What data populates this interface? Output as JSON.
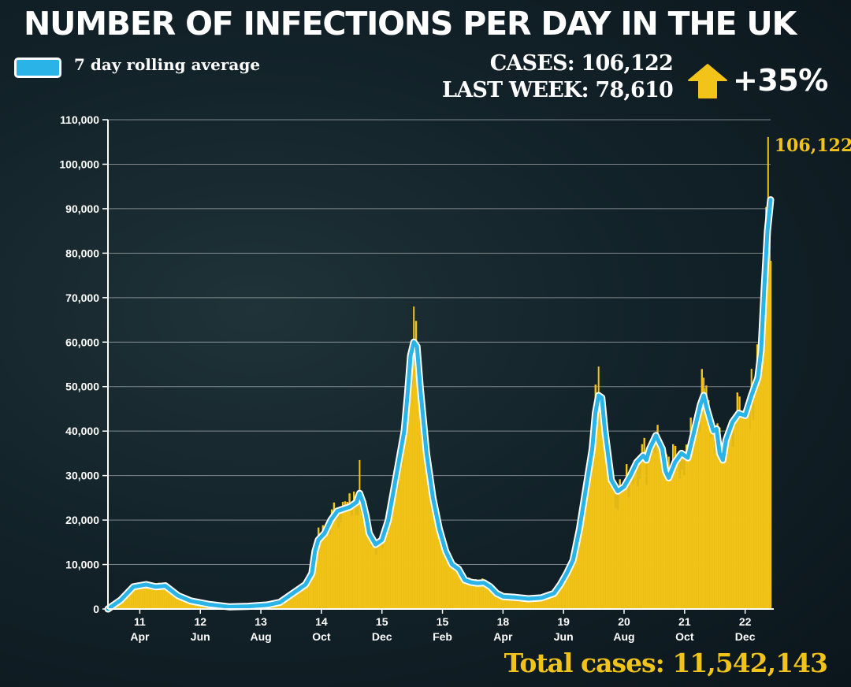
{
  "title": "NUMBER OF INFECTIONS PER DAY IN THE UK",
  "legend": {
    "label": "7 day rolling average"
  },
  "stats": {
    "cases": "CASES: 106,122",
    "last_week": "LAST WEEK: 78,610",
    "change": "+35%",
    "change_direction": "up"
  },
  "peak_label": "106,122",
  "total_cases": {
    "label": "Total cases:",
    "value": "11,542,143"
  },
  "colors": {
    "bars": "#f2c318",
    "line": "#2ab3e6",
    "line_halo": "#ffffff",
    "text": "#ffffff",
    "accent": "#f2c318"
  },
  "chart_data": {
    "type": "bar",
    "title": "NUMBER OF INFECTIONS PER DAY IN THE UK",
    "ylim": [
      0,
      110000
    ],
    "y_ticks": [
      "0",
      "10,000",
      "20,000",
      "30,000",
      "40,000",
      "50,000",
      "60,000",
      "70,000",
      "80,000",
      "90,000",
      "100,000",
      "110,000"
    ],
    "x_ticks": [
      {
        "day": "11",
        "month": "Apr",
        "t": 0.05
      },
      {
        "day": "12",
        "month": "Jun",
        "t": 0.145
      },
      {
        "day": "13",
        "month": "Aug",
        "t": 0.24
      },
      {
        "day": "14",
        "month": "Oct",
        "t": 0.335
      },
      {
        "day": "15",
        "month": "Dec",
        "t": 0.43
      },
      {
        "day": "15",
        "month": "Feb",
        "t": 0.525
      },
      {
        "day": "18",
        "month": "Apr",
        "t": 0.62
      },
      {
        "day": "19",
        "month": "Jun",
        "t": 0.715
      },
      {
        "day": "20",
        "month": "Aug",
        "t": 0.81
      },
      {
        "day": "21",
        "month": "Oct",
        "t": 0.905
      },
      {
        "day": "22",
        "month": "Dec",
        "t": 1.0
      }
    ],
    "series": [
      {
        "name": "7 day rolling average",
        "points": [
          [
            0.0,
            0
          ],
          [
            0.02,
            2000
          ],
          [
            0.04,
            5000
          ],
          [
            0.06,
            5500
          ],
          [
            0.075,
            5000
          ],
          [
            0.09,
            5200
          ],
          [
            0.11,
            3000
          ],
          [
            0.13,
            1800
          ],
          [
            0.16,
            1000
          ],
          [
            0.19,
            500
          ],
          [
            0.22,
            600
          ],
          [
            0.25,
            900
          ],
          [
            0.27,
            1500
          ],
          [
            0.29,
            3500
          ],
          [
            0.31,
            5500
          ],
          [
            0.32,
            8000
          ],
          [
            0.325,
            13000
          ],
          [
            0.33,
            15500
          ],
          [
            0.34,
            17000
          ],
          [
            0.35,
            20000
          ],
          [
            0.36,
            22000
          ],
          [
            0.37,
            22500
          ],
          [
            0.38,
            23000
          ],
          [
            0.39,
            24000
          ],
          [
            0.395,
            26000
          ],
          [
            0.4,
            24000
          ],
          [
            0.405,
            21000
          ],
          [
            0.41,
            17000
          ],
          [
            0.42,
            14500
          ],
          [
            0.43,
            15500
          ],
          [
            0.44,
            20000
          ],
          [
            0.45,
            28000
          ],
          [
            0.46,
            36000
          ],
          [
            0.465,
            40000
          ],
          [
            0.47,
            48000
          ],
          [
            0.475,
            57000
          ],
          [
            0.48,
            60000
          ],
          [
            0.485,
            59000
          ],
          [
            0.49,
            50000
          ],
          [
            0.5,
            35000
          ],
          [
            0.51,
            25000
          ],
          [
            0.52,
            18000
          ],
          [
            0.53,
            13000
          ],
          [
            0.54,
            10000
          ],
          [
            0.55,
            9000
          ],
          [
            0.56,
            6500
          ],
          [
            0.57,
            6000
          ],
          [
            0.58,
            5800
          ],
          [
            0.59,
            5900
          ],
          [
            0.6,
            5000
          ],
          [
            0.61,
            3500
          ],
          [
            0.62,
            2800
          ],
          [
            0.64,
            2600
          ],
          [
            0.66,
            2300
          ],
          [
            0.68,
            2500
          ],
          [
            0.7,
            3500
          ],
          [
            0.71,
            5500
          ],
          [
            0.72,
            8000
          ],
          [
            0.73,
            11000
          ],
          [
            0.74,
            18000
          ],
          [
            0.75,
            27000
          ],
          [
            0.76,
            36000
          ],
          [
            0.765,
            44000
          ],
          [
            0.77,
            48000
          ],
          [
            0.775,
            47500
          ],
          [
            0.78,
            40000
          ],
          [
            0.79,
            29000
          ],
          [
            0.8,
            26500
          ],
          [
            0.81,
            27500
          ],
          [
            0.82,
            30000
          ],
          [
            0.83,
            33000
          ],
          [
            0.84,
            34500
          ],
          [
            0.845,
            33500
          ],
          [
            0.85,
            36000
          ],
          [
            0.86,
            39000
          ],
          [
            0.87,
            36000
          ],
          [
            0.875,
            31000
          ],
          [
            0.88,
            29500
          ],
          [
            0.89,
            33000
          ],
          [
            0.9,
            35000
          ],
          [
            0.91,
            34000
          ],
          [
            0.92,
            40000
          ],
          [
            0.93,
            46000
          ],
          [
            0.935,
            48000
          ],
          [
            0.94,
            45000
          ],
          [
            0.95,
            40000
          ],
          [
            0.955,
            40500
          ],
          [
            0.96,
            35000
          ],
          [
            0.965,
            33500
          ],
          [
            0.97,
            38000
          ],
          [
            0.98,
            42000
          ],
          [
            0.99,
            44000
          ],
          [
            1.0,
            43500
          ],
          [
            1.01,
            48000
          ],
          [
            1.02,
            52000
          ],
          [
            1.025,
            58000
          ],
          [
            1.03,
            72000
          ],
          [
            1.035,
            85000
          ],
          [
            1.04,
            92000
          ]
        ]
      }
    ],
    "latest_daily_cases": 106122
  }
}
